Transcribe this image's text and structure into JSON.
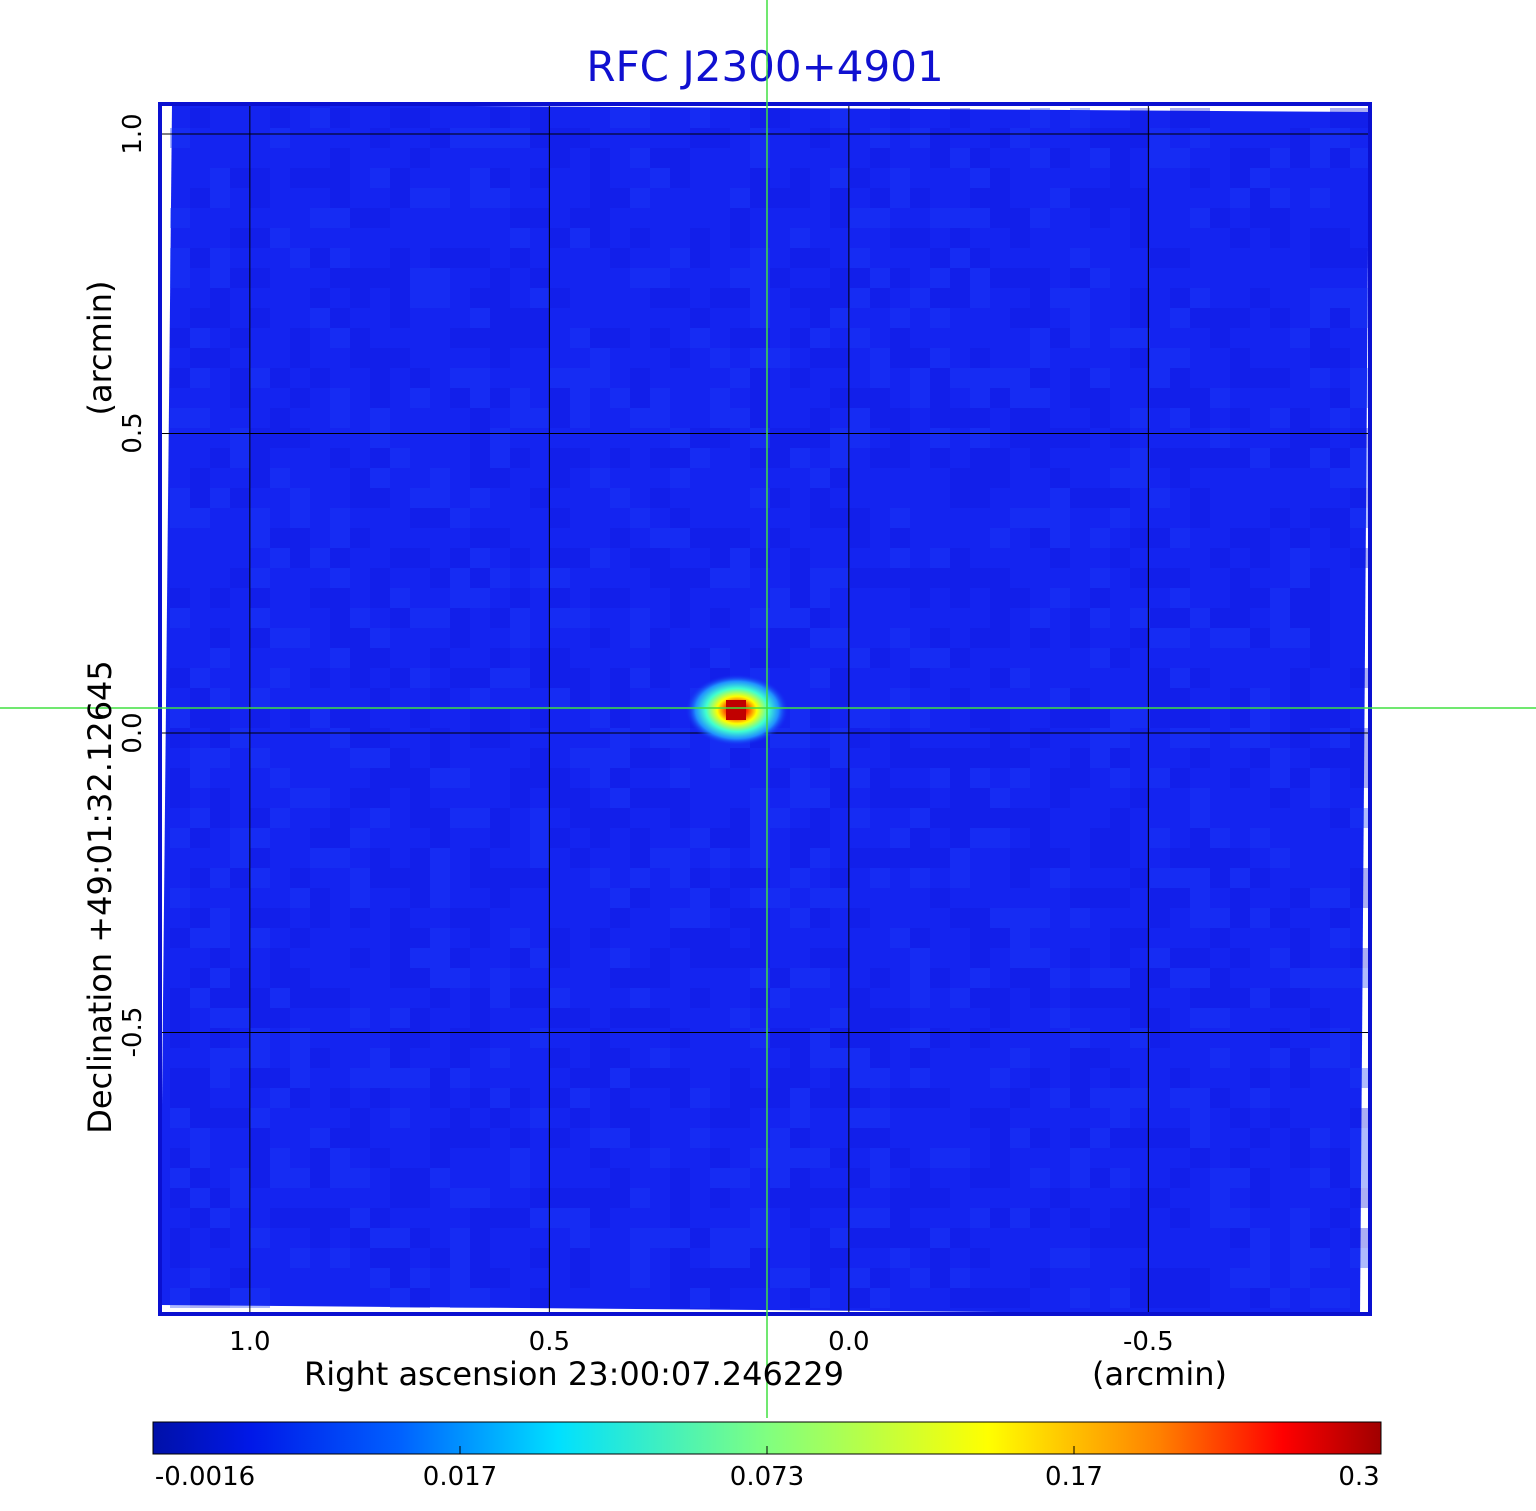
{
  "chart_data": {
    "type": "heatmap",
    "title": "RFC J2300+4901",
    "xlabel": "Right ascension  23:00:07.246229",
    "xunit": "(arcmin)",
    "ylabel": "Declination  +49:01:32.12645",
    "yunit": "(arcmin)",
    "x_ticks": [
      "1.0",
      "0.5",
      "0.0",
      "-0.5"
    ],
    "y_ticks": [
      "1.0",
      "0.5",
      "0.0",
      "-0.5"
    ],
    "xlim": [
      1.15,
      -0.87
    ],
    "ylim": [
      -0.97,
      1.05
    ],
    "grid": true,
    "colormap": "jet",
    "colorbar": {
      "ticks": [
        "-0.0016",
        "0.017",
        "0.073",
        "0.17",
        "0.3"
      ],
      "range": [
        -0.0016,
        0.3
      ]
    },
    "peak": {
      "x": 0.2,
      "y": 0.03,
      "value": 0.3
    },
    "crosshair": {
      "x": 0.14,
      "y": 0.04,
      "color": "#40e040"
    },
    "colors": {
      "title": "#1010d0",
      "frame": "#0a10d0",
      "background_field": "#1020f0"
    }
  }
}
